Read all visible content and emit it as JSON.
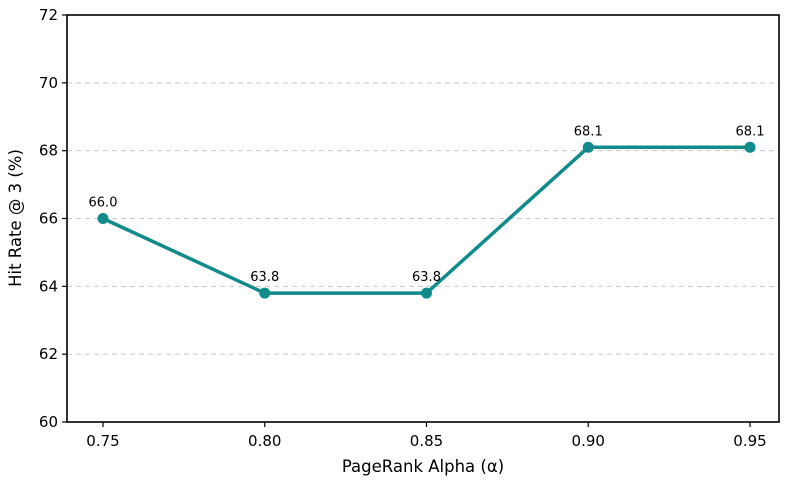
{
  "chart_data": {
    "type": "line",
    "x": [
      0.75,
      0.8,
      0.85,
      0.9,
      0.95
    ],
    "x_tick_labels": [
      "0.75",
      "0.80",
      "0.85",
      "0.90",
      "0.95"
    ],
    "values": [
      66.0,
      63.8,
      63.8,
      68.1,
      68.1
    ],
    "point_labels": [
      "66.0",
      "63.8",
      "63.8",
      "68.1",
      "68.1"
    ],
    "series_name": "Hit Rate @ 3",
    "title": "",
    "xlabel": "PageRank Alpha (α)",
    "ylabel": "Hit Rate @ 3 (%)",
    "xlim": [
      0.75,
      0.95
    ],
    "ylim": [
      60,
      72
    ],
    "yticks": [
      60,
      62,
      64,
      66,
      68,
      70,
      72
    ],
    "ytick_labels": [
      "60",
      "62",
      "64",
      "66",
      "68",
      "70",
      "72"
    ],
    "grid": "horizontal-dashed",
    "legend": "none",
    "line_color": "#0f8b8b",
    "marker_color": "#0f8b8b",
    "grid_color": "#c9c9c9",
    "spine_color": "#000000",
    "text_color": "#000000"
  }
}
